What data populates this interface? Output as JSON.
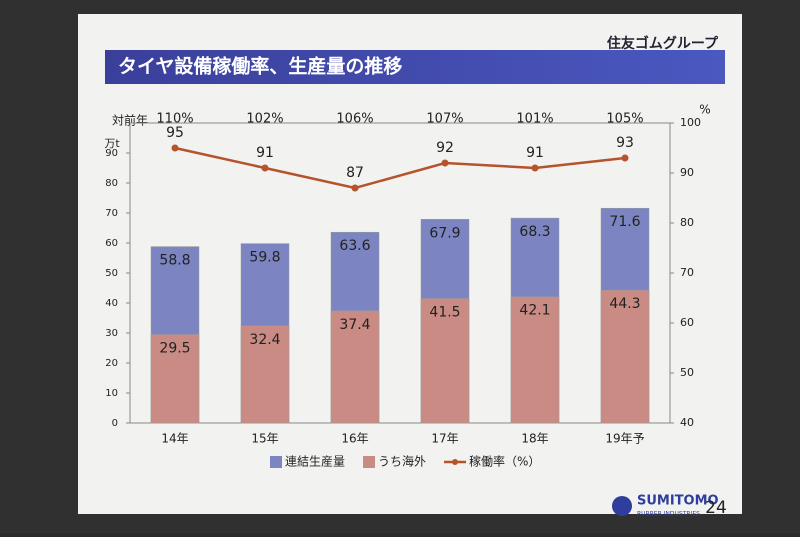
{
  "header": {
    "title": "タイヤ設備稼働率、生産量の推移",
    "brand": "住友ゴムグループ"
  },
  "footer": {
    "company": "SUMITOMO",
    "subline": "RUBBER INDUSTRIES",
    "page": "24"
  },
  "chart_data": {
    "type": "bar-line",
    "categories": [
      "14年",
      "15年",
      "16年",
      "17年",
      "18年",
      "19年予"
    ],
    "yoy_label": "対前年",
    "yoy_labels": [
      "110%",
      "102%",
      "106%",
      "107%",
      "101%",
      "105%"
    ],
    "y_unit": "万t",
    "y2_unit": "%",
    "series": [
      {
        "name": "連結生産量",
        "color": "#7c84c2",
        "type": "bar",
        "values": [
          58.8,
          59.8,
          63.6,
          67.9,
          68.3,
          71.6
        ]
      },
      {
        "name": "うち海外",
        "color": "#c98b84",
        "type": "bar",
        "values": [
          29.5,
          32.4,
          37.4,
          41.5,
          42.1,
          44.3
        ]
      },
      {
        "name": "稼働率（%）",
        "color": "#b4532c",
        "type": "line",
        "axis": "y2",
        "values": [
          95,
          91,
          87,
          92,
          91,
          93
        ]
      }
    ],
    "ylim": [
      0,
      100
    ],
    "yticks": [
      0,
      10,
      20,
      30,
      40,
      50,
      60,
      70,
      80,
      90
    ],
    "y2lim": [
      40,
      100
    ],
    "y2ticks": [
      40,
      50,
      60,
      70,
      80,
      90,
      100
    ],
    "grid": false
  }
}
